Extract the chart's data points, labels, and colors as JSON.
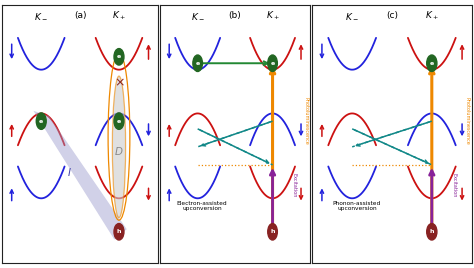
{
  "fig_width": 4.74,
  "fig_height": 2.68,
  "dpi": 100,
  "background": "#ffffff",
  "colors": {
    "blue_band": "#2222dd",
    "red_band": "#cc1111",
    "orange_arrow": "#ee8800",
    "purple_arrow": "#882299",
    "green_arrow": "#228833",
    "teal_dashed": "#118888",
    "electron_fill": "#226622",
    "hole_fill": "#882222",
    "I_region": "#9999cc",
    "D_region": "#cccccc",
    "X_color": "#882222",
    "border": "#222222"
  },
  "panel_b_label": "Electron-assisted\nupconversion",
  "panel_c_label": "Phonon-assisted\nupconversion",
  "excitation_label": "Excitation",
  "photoluminescence_label": "Photoluminescence"
}
